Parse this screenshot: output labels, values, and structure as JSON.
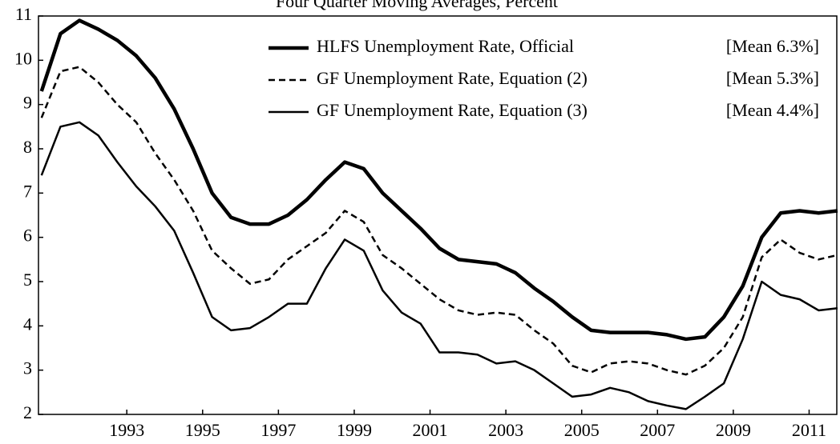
{
  "chart_data": {
    "type": "line",
    "title": "Four Quarter Moving Averages, Percent",
    "x": [
      1990.75,
      1991.25,
      1991.75,
      1992.25,
      1992.75,
      1993.25,
      1993.75,
      1994.25,
      1994.75,
      1995.25,
      1995.75,
      1996.25,
      1996.75,
      1997.25,
      1997.75,
      1998.25,
      1998.75,
      1999.25,
      1999.75,
      2000.25,
      2000.75,
      2001.25,
      2001.75,
      2002.25,
      2002.75,
      2003.25,
      2003.75,
      2004.25,
      2004.75,
      2005.25,
      2005.75,
      2006.25,
      2006.75,
      2007.25,
      2007.75,
      2008.25,
      2008.75,
      2009.25,
      2009.75,
      2010.25,
      2010.75,
      2011.25,
      2011.75
    ],
    "series": [
      {
        "name": "HLFS Unemployment Rate, Official",
        "note": "[Mean 6.3%]",
        "color": "#000000",
        "width": 4.5,
        "dash": "none",
        "values": [
          9.3,
          10.6,
          10.9,
          10.7,
          10.45,
          10.1,
          9.6,
          8.9,
          8.0,
          7.0,
          6.45,
          6.3,
          6.3,
          6.5,
          6.85,
          7.3,
          7.7,
          7.55,
          7.0,
          6.6,
          6.2,
          5.75,
          5.5,
          5.45,
          5.4,
          5.2,
          4.85,
          4.55,
          4.2,
          3.9,
          3.85,
          3.85,
          3.85,
          3.8,
          3.7,
          3.75,
          4.2,
          4.9,
          6.0,
          6.55,
          6.6,
          6.55,
          6.6
        ]
      },
      {
        "name": "GF Unemployment Rate, Equation (2)",
        "note": "[Mean 5.3%]",
        "color": "#000000",
        "width": 2.5,
        "dash": "8,5",
        "values": [
          8.7,
          9.75,
          9.85,
          9.5,
          9.0,
          8.6,
          7.9,
          7.3,
          6.6,
          5.7,
          5.3,
          4.95,
          5.05,
          5.5,
          5.8,
          6.1,
          6.6,
          6.35,
          5.6,
          5.3,
          4.95,
          4.6,
          4.35,
          4.25,
          4.3,
          4.25,
          3.9,
          3.6,
          3.1,
          2.95,
          3.15,
          3.2,
          3.15,
          3.0,
          2.9,
          3.1,
          3.5,
          4.2,
          5.55,
          5.95,
          5.65,
          5.5,
          5.6
        ]
      },
      {
        "name": "GF Unemployment Rate, Equation (3)",
        "note": "[Mean 4.4%]",
        "color": "#000000",
        "width": 2.5,
        "dash": "none",
        "values": [
          7.4,
          8.5,
          8.6,
          8.3,
          7.7,
          7.15,
          6.7,
          6.15,
          5.2,
          4.2,
          3.9,
          3.95,
          4.2,
          4.5,
          4.5,
          5.3,
          5.95,
          5.7,
          4.8,
          4.3,
          4.05,
          3.4,
          3.4,
          3.35,
          3.15,
          3.2,
          3.0,
          2.7,
          2.4,
          2.45,
          2.6,
          2.5,
          2.3,
          2.2,
          2.12,
          2.4,
          2.7,
          3.7,
          5.0,
          4.7,
          4.6,
          4.35,
          4.4
        ]
      }
    ],
    "xlim": [
      1990.67,
      2011.73
    ],
    "xticks": [
      1993,
      1995,
      1997,
      1999,
      2001,
      2003,
      2005,
      2007,
      2009,
      2011
    ],
    "ylim": [
      2,
      11
    ],
    "yticks": [
      2,
      3,
      4,
      5,
      6,
      7,
      8,
      9,
      10,
      11
    ]
  }
}
